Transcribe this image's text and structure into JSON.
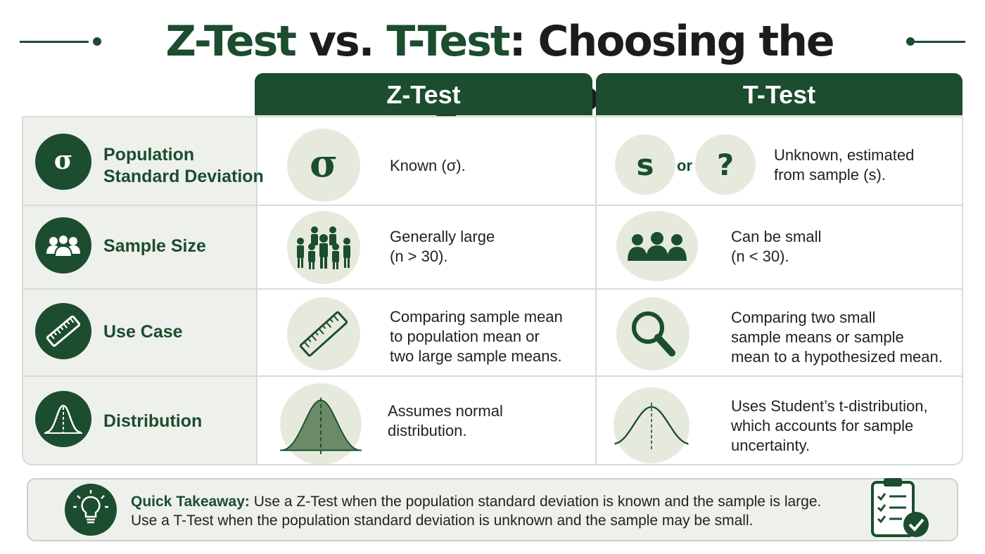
{
  "title": {
    "part1": "Z-Test",
    "part2": " vs. ",
    "part3": "T-Test",
    "part4": ": Choosing the Right Tool"
  },
  "columns": {
    "z": "Z-Test",
    "t": "T-Test"
  },
  "rows": [
    {
      "label": "Population\nStandard Deviation",
      "icon": "sigma-icon",
      "z_glyph": "σ",
      "z_text": "Known (σ).",
      "t_glyph_1": "s",
      "t_or": "or",
      "t_glyph_2": "?",
      "t_text": "Unknown, estimated\nfrom sample (s)."
    },
    {
      "label": "Sample Size",
      "icon": "people-group-icon",
      "z_text": "Generally large\n(n > 30).",
      "t_text": "Can be small\n(n < 30)."
    },
    {
      "label": "Use Case",
      "icon": "ruler-icon",
      "z_text": "Comparing sample mean\nto population mean or\ntwo large sample means.",
      "t_text": "Comparing two small\nsample means or sample\nmean to a hypothesized mean."
    },
    {
      "label": "Distribution",
      "icon": "bell-curve-icon",
      "z_text": "Assumes normal\ndistribution.",
      "t_text": "Uses Student’s t-distribution,\nwhich accounts for sample\nuncertainty."
    }
  ],
  "takeaway": {
    "bold": "Quick Takeaway:",
    "line1": " Use a Z-Test when the population standard deviation is known and the sample is large.",
    "line2": "Use a T-Test when the population standard deviation is unknown and the sample may be small."
  },
  "colors": {
    "primary": "#1b4d2e",
    "panel": "#eef1eb",
    "circle": "#e6eadd",
    "border": "#d5dcd6"
  }
}
